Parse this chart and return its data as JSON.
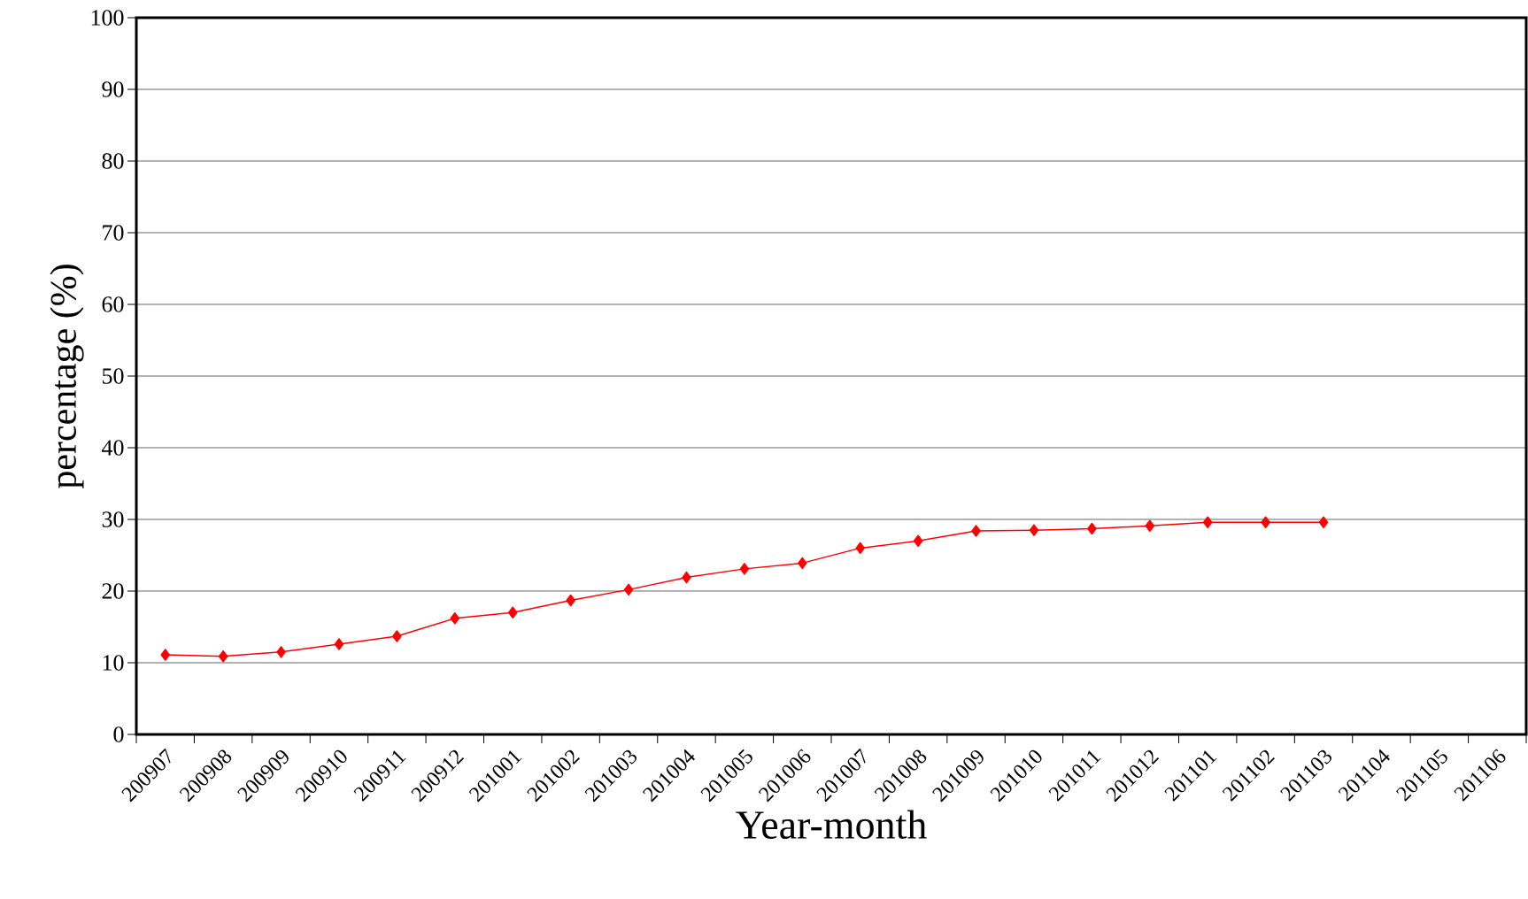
{
  "chart_data": {
    "type": "line",
    "xlabel": "Year-month",
    "ylabel": "percentage (%)",
    "categories": [
      "200907",
      "200908",
      "200909",
      "200910",
      "200911",
      "200912",
      "201001",
      "201002",
      "201003",
      "201004",
      "201005",
      "201006",
      "201007",
      "201008",
      "201009",
      "201010",
      "201011",
      "201012",
      "201101",
      "201102",
      "201103",
      "201104",
      "201105",
      "201106"
    ],
    "series": [
      {
        "color": "#ff0000",
        "values": [
          11.1,
          10.9,
          11.5,
          12.6,
          13.7,
          16.2,
          17.0,
          18.7,
          20.2,
          21.9,
          23.1,
          23.9,
          26.0,
          27.0,
          28.4,
          28.5,
          28.7,
          29.1,
          29.6,
          29.6,
          29.6,
          null,
          null,
          null
        ]
      }
    ],
    "ylim": [
      0,
      100
    ],
    "yticks": [
      0,
      10,
      20,
      30,
      40,
      50,
      60,
      70,
      80,
      90,
      100
    ],
    "grid": "y",
    "marker": "diamond",
    "line_style": "solid"
  }
}
